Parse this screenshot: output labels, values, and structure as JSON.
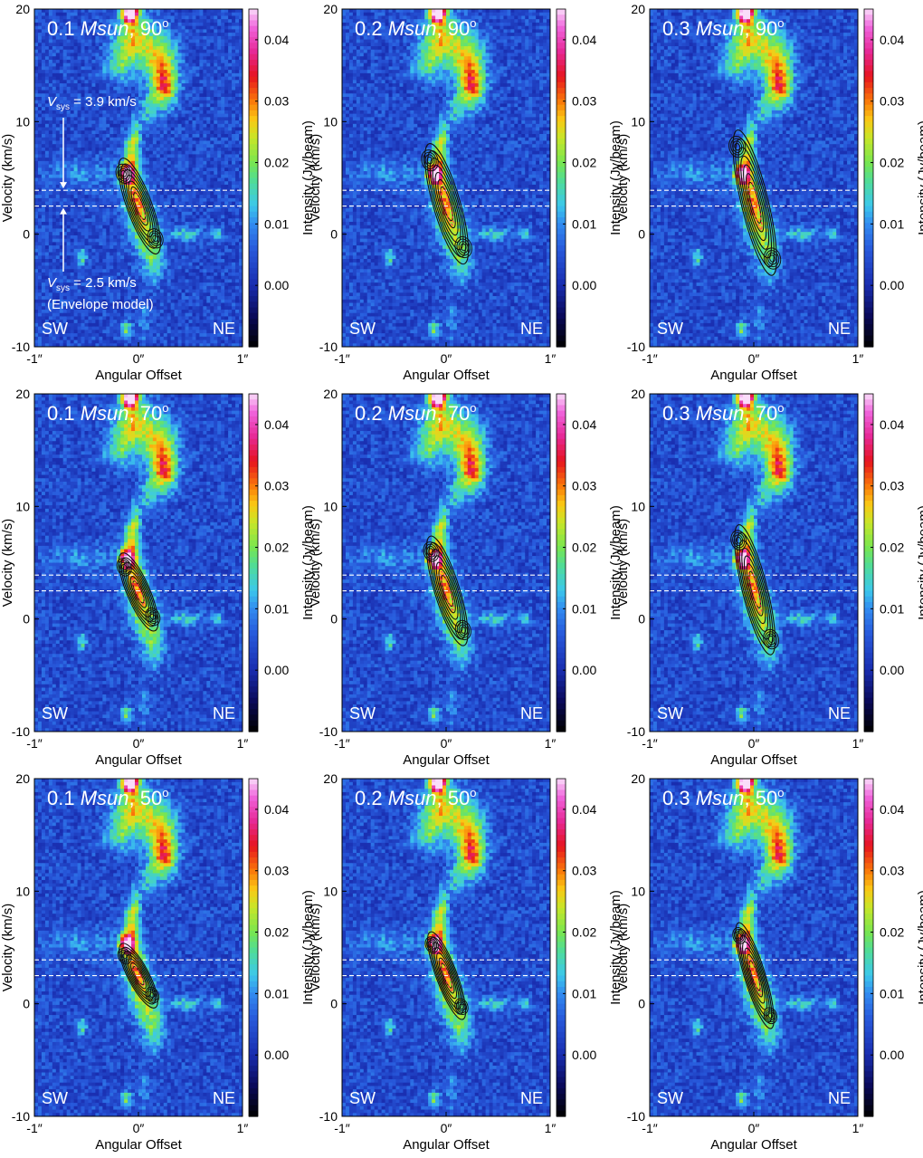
{
  "chart_data": {
    "type": "heatmap",
    "description_free": true,
    "xlabel": "Angular Offset",
    "ylabel": "Velocity (km/s)",
    "colorbar_label": "Intensity (Jy/beam)",
    "x_ticks": [
      "-1″",
      "0″",
      "1″"
    ],
    "y_ticks": [
      20,
      10,
      0,
      -10
    ],
    "ylim": [
      -10,
      20
    ],
    "xlim": [
      -1,
      1
    ],
    "colorbar_ticks": [
      "0.04",
      "0.03",
      "0.02",
      "0.01",
      "0.00"
    ],
    "colorbar_tick_values": [
      0.04,
      0.03,
      0.02,
      0.01,
      0.0
    ],
    "colorbar_range": [
      -0.01,
      0.045
    ],
    "corner_labels": {
      "left": "SW",
      "right": "NE"
    },
    "vsys_lines": [
      3.9,
      2.5
    ],
    "annotations": {
      "vsys_top": "V",
      "vsys_top_sub": "sys",
      "vsys_top_value": " = 3.9 km/s",
      "vsys_bottom": "V",
      "vsys_bottom_sub": "sys",
      "vsys_bottom_value": " = 2.5 km/s",
      "vsys_bottom_note": "(Envelope model)"
    },
    "panels": [
      {
        "mass": "0.1",
        "unit": "Msun",
        "incl": "90",
        "contour": {
          "v_top": 5.8,
          "v_bot": -0.8,
          "x_top": -0.12,
          "x_bot": 0.14,
          "w": 0.12
        }
      },
      {
        "mass": "0.2",
        "unit": "Msun",
        "incl": "90",
        "contour": {
          "v_top": 7.0,
          "v_bot": -1.6,
          "x_top": -0.13,
          "x_bot": 0.14,
          "w": 0.13
        }
      },
      {
        "mass": "0.3",
        "unit": "Msun",
        "incl": "90",
        "contour": {
          "v_top": 8.2,
          "v_bot": -2.6,
          "x_top": -0.13,
          "x_bot": 0.15,
          "w": 0.13
        }
      },
      {
        "mass": "0.1",
        "unit": "Msun",
        "incl": "70",
        "contour": {
          "v_top": 5.0,
          "v_bot": -0.2,
          "x_top": -0.12,
          "x_bot": 0.12,
          "w": 0.11
        }
      },
      {
        "mass": "0.2",
        "unit": "Msun",
        "incl": "70",
        "contour": {
          "v_top": 6.4,
          "v_bot": -1.4,
          "x_top": -0.12,
          "x_bot": 0.14,
          "w": 0.12
        }
      },
      {
        "mass": "0.3",
        "unit": "Msun",
        "incl": "70",
        "contour": {
          "v_top": 7.4,
          "v_bot": -2.2,
          "x_top": -0.12,
          "x_bot": 0.14,
          "w": 0.12
        }
      },
      {
        "mass": "0.1",
        "unit": "Msun",
        "incl": "50",
        "contour": {
          "v_top": 4.6,
          "v_bot": 0.4,
          "x_top": -0.12,
          "x_bot": 0.12,
          "w": 0.1
        }
      },
      {
        "mass": "0.2",
        "unit": "Msun",
        "incl": "50",
        "contour": {
          "v_top": 5.6,
          "v_bot": -0.6,
          "x_top": -0.12,
          "x_bot": 0.13,
          "w": 0.1
        }
      },
      {
        "mass": "0.3",
        "unit": "Msun",
        "incl": "50",
        "contour": {
          "v_top": 6.4,
          "v_bot": -1.4,
          "x_top": -0.12,
          "x_bot": 0.14,
          "w": 0.1
        }
      }
    ]
  }
}
